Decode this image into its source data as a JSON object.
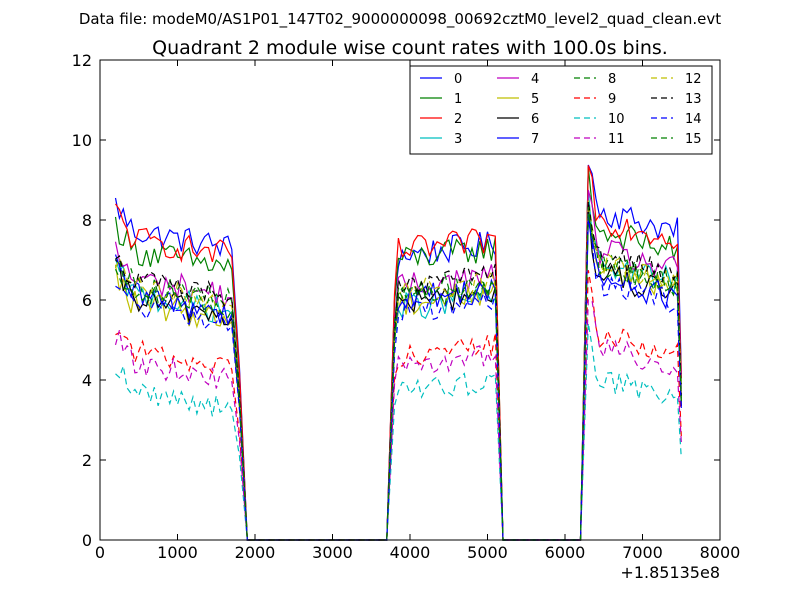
{
  "chart_data": {
    "type": "line",
    "suptitle": "Data file: modeM0/AS1P01_147T02_9000000098_00692cztM0_level2_quad_clean.evt",
    "title": "Quadrant 2 module wise count rates with 100.0s bins.",
    "xlabel": "",
    "ylabel": "",
    "x_offset_label": "+1.85135e8",
    "xlim": [
      0,
      8000
    ],
    "ylim": [
      0,
      12
    ],
    "xticks": [
      0,
      1000,
      2000,
      3000,
      4000,
      5000,
      6000,
      7000,
      8000
    ],
    "yticks": [
      0,
      2,
      4,
      6,
      8,
      10,
      12
    ],
    "grid": false,
    "legend_position": "top-right",
    "segments": [
      {
        "x_start": 200,
        "x_end": 1700,
        "zero_end": 1900
      },
      {
        "x_start": 3800,
        "x_end": 5100,
        "zero_end": 3700
      },
      {
        "x_start": 6300,
        "x_end": 7500,
        "zero_end": 6200
      }
    ],
    "series": [
      {
        "name": "0",
        "color": "#0000ff",
        "dash": "solid",
        "levels": [
          7.8,
          7.1,
          8.3
        ]
      },
      {
        "name": "1",
        "color": "#008000",
        "dash": "solid",
        "levels": [
          7.3,
          7.0,
          7.8
        ]
      },
      {
        "name": "2",
        "color": "#ff0000",
        "dash": "solid",
        "levels": [
          7.6,
          7.2,
          8.1
        ]
      },
      {
        "name": "3",
        "color": "#00bfbf",
        "dash": "solid",
        "levels": [
          6.2,
          5.8,
          7.0
        ]
      },
      {
        "name": "4",
        "color": "#bf00bf",
        "dash": "solid",
        "levels": [
          6.6,
          6.3,
          7.3
        ]
      },
      {
        "name": "5",
        "color": "#bfbf00",
        "dash": "solid",
        "levels": [
          6.0,
          5.9,
          6.9
        ]
      },
      {
        "name": "6",
        "color": "#000000",
        "dash": "solid",
        "levels": [
          6.1,
          5.9,
          6.7
        ]
      },
      {
        "name": "7",
        "color": "#0000ff",
        "dash": "solid",
        "levels": [
          6.2,
          6.0,
          6.6
        ]
      },
      {
        "name": "8",
        "color": "#008000",
        "dash": "dashed",
        "levels": [
          6.5,
          6.2,
          7.0
        ]
      },
      {
        "name": "9",
        "color": "#ff0000",
        "dash": "dashed",
        "levels": [
          4.8,
          4.6,
          5.2
        ]
      },
      {
        "name": "10",
        "color": "#00bfbf",
        "dash": "dashed",
        "levels": [
          3.8,
          3.7,
          4.1
        ]
      },
      {
        "name": "11",
        "color": "#bf00bf",
        "dash": "dashed",
        "levels": [
          4.5,
          4.3,
          4.9
        ]
      },
      {
        "name": "12",
        "color": "#bfbf00",
        "dash": "dashed",
        "levels": [
          6.4,
          6.2,
          7.0
        ]
      },
      {
        "name": "13",
        "color": "#000000",
        "dash": "dashed",
        "levels": [
          6.6,
          6.3,
          7.2
        ]
      },
      {
        "name": "14",
        "color": "#0000ff",
        "dash": "dashed",
        "levels": [
          5.9,
          5.7,
          6.5
        ]
      },
      {
        "name": "15",
        "color": "#008000",
        "dash": "dashed",
        "levels": [
          6.3,
          6.0,
          6.9
        ]
      }
    ]
  }
}
